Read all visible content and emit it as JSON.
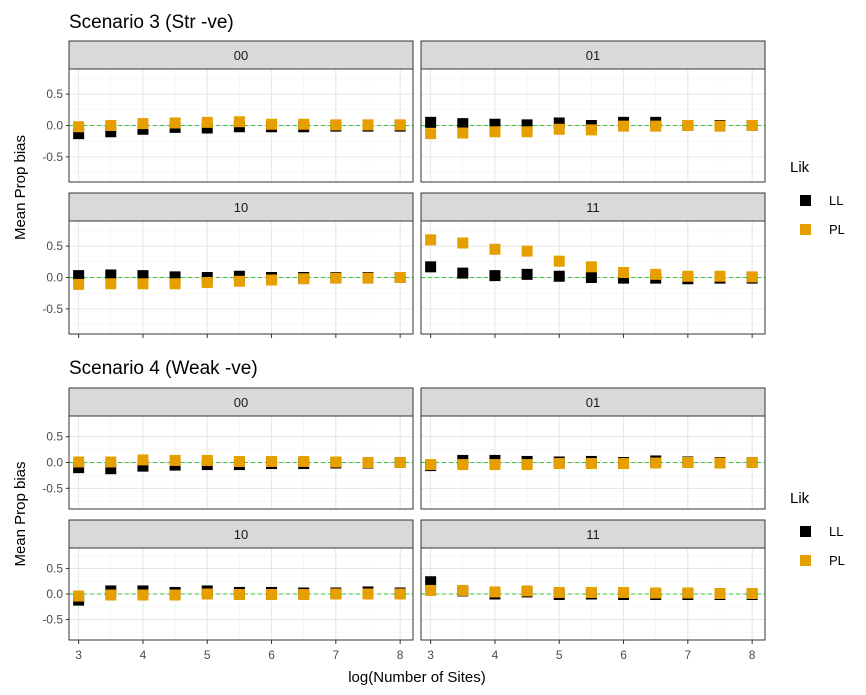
{
  "chart_data": [
    {
      "type": "scatter",
      "title": "Scenario 3 (Str -ve)",
      "ylabel": "Mean Prop bias",
      "xlabel": "",
      "ylim": [
        -0.9,
        0.9
      ],
      "yticks": [
        0.5,
        0.0,
        -0.5
      ],
      "ytick_labels": [
        "0.5",
        "0.0",
        "-0.5"
      ],
      "xlim": [
        2.85,
        8.2
      ],
      "xticks": [
        3,
        4,
        5,
        6,
        7,
        8
      ],
      "reference_line": 0,
      "grid": true,
      "legend": {
        "title": "Lik",
        "placement": "right",
        "entries": [
          "LL",
          "PL"
        ]
      },
      "colors": {
        "LL": "#000000",
        "PL": "#E69F00",
        "reference": "#33CC33"
      },
      "x": [
        3,
        3.5,
        4,
        4.5,
        5,
        5.5,
        6,
        6.5,
        7,
        7.5,
        8
      ],
      "panels": [
        {
          "label": "00",
          "series": [
            {
              "name": "LL",
              "values": [
                -0.13,
                -0.1,
                -0.06,
                -0.03,
                -0.04,
                -0.02,
                -0.02,
                -0.02,
                -0.01,
                -0.01,
                -0.01
              ]
            },
            {
              "name": "PL",
              "values": [
                -0.02,
                0.0,
                0.03,
                0.04,
                0.05,
                0.06,
                0.02,
                0.02,
                0.01,
                0.01,
                0.01
              ]
            }
          ]
        },
        {
          "label": "01",
          "series": [
            {
              "name": "LL",
              "values": [
                0.05,
                0.03,
                0.02,
                0.01,
                0.04,
                0.0,
                0.05,
                0.05,
                0.0,
                0.0,
                0.0
              ]
            },
            {
              "name": "PL",
              "values": [
                -0.13,
                -0.12,
                -0.1,
                -0.1,
                -0.06,
                -0.07,
                -0.01,
                -0.01,
                0.0,
                -0.01,
                0.0
              ]
            }
          ]
        },
        {
          "label": "10",
          "series": [
            {
              "name": "LL",
              "values": [
                0.03,
                0.04,
                0.03,
                0.01,
                0.0,
                0.02,
                0.0,
                0.0,
                0.0,
                0.0,
                0.0
              ]
            },
            {
              "name": "PL",
              "values": [
                -0.11,
                -0.1,
                -0.1,
                -0.1,
                -0.08,
                -0.06,
                -0.04,
                -0.02,
                -0.01,
                -0.01,
                0.0
              ]
            }
          ]
        },
        {
          "label": "11",
          "series": [
            {
              "name": "LL",
              "values": [
                0.17,
                0.07,
                0.03,
                0.05,
                0.02,
                0.0,
                -0.01,
                -0.01,
                -0.02,
                -0.01,
                -0.01
              ]
            },
            {
              "name": "PL",
              "values": [
                0.6,
                0.55,
                0.45,
                0.42,
                0.26,
                0.17,
                0.08,
                0.05,
                0.02,
                0.02,
                0.01
              ]
            }
          ]
        }
      ]
    },
    {
      "type": "scatter",
      "title": "Scenario 4 (Weak -ve)",
      "ylabel": "Mean Prop bias",
      "xlabel": "log(Number of Sites)",
      "ylim": [
        -0.9,
        0.9
      ],
      "yticks": [
        0.5,
        0.0,
        -0.5
      ],
      "ytick_labels": [
        "0.5",
        "0.0",
        "-0.5"
      ],
      "xlim": [
        2.85,
        8.2
      ],
      "xticks": [
        3,
        4,
        5,
        6,
        7,
        8
      ],
      "xtick_labels": [
        "3",
        "4",
        "5",
        "6",
        "7",
        "8"
      ],
      "reference_line": 0,
      "grid": true,
      "legend": {
        "title": "Lik",
        "placement": "right",
        "entries": [
          "LL",
          "PL"
        ]
      },
      "colors": {
        "LL": "#000000",
        "PL": "#E69F00",
        "reference": "#33CC33"
      },
      "x": [
        3,
        3.5,
        4,
        4.5,
        5,
        5.5,
        6,
        6.5,
        7,
        7.5,
        8
      ],
      "panels": [
        {
          "label": "00",
          "series": [
            {
              "name": "LL",
              "values": [
                -0.1,
                -0.12,
                -0.07,
                -0.05,
                -0.04,
                -0.04,
                -0.02,
                -0.02,
                -0.01,
                -0.01,
                0.0
              ]
            },
            {
              "name": "PL",
              "values": [
                0.01,
                0.01,
                0.05,
                0.04,
                0.04,
                0.02,
                0.02,
                0.02,
                0.01,
                0.0,
                0.0
              ]
            }
          ]
        },
        {
          "label": "01",
          "series": [
            {
              "name": "LL",
              "values": [
                -0.06,
                0.04,
                0.04,
                0.02,
                0.01,
                0.02,
                0.0,
                0.03,
                0.01,
                0.0,
                0.0
              ]
            },
            {
              "name": "PL",
              "values": [
                -0.04,
                -0.04,
                -0.04,
                -0.04,
                -0.02,
                -0.02,
                -0.02,
                -0.01,
                0.0,
                -0.01,
                0.0
              ]
            }
          ]
        },
        {
          "label": "10",
          "series": [
            {
              "name": "LL",
              "values": [
                -0.12,
                0.06,
                0.06,
                0.03,
                0.06,
                0.03,
                0.03,
                0.02,
                0.02,
                0.04,
                0.02
              ]
            },
            {
              "name": "PL",
              "values": [
                -0.04,
                -0.02,
                -0.02,
                -0.02,
                0.0,
                -0.01,
                -0.01,
                -0.01,
                0.0,
                0.0,
                0.0
              ]
            }
          ]
        },
        {
          "label": "11",
          "series": [
            {
              "name": "LL",
              "values": [
                0.24,
                0.06,
                0.0,
                0.04,
                -0.01,
                0.0,
                -0.01,
                -0.01,
                -0.01,
                -0.01,
                -0.01
              ]
            },
            {
              "name": "PL",
              "values": [
                0.07,
                0.07,
                0.04,
                0.06,
                0.03,
                0.03,
                0.03,
                0.02,
                0.02,
                0.01,
                0.01
              ]
            }
          ]
        }
      ]
    }
  ]
}
